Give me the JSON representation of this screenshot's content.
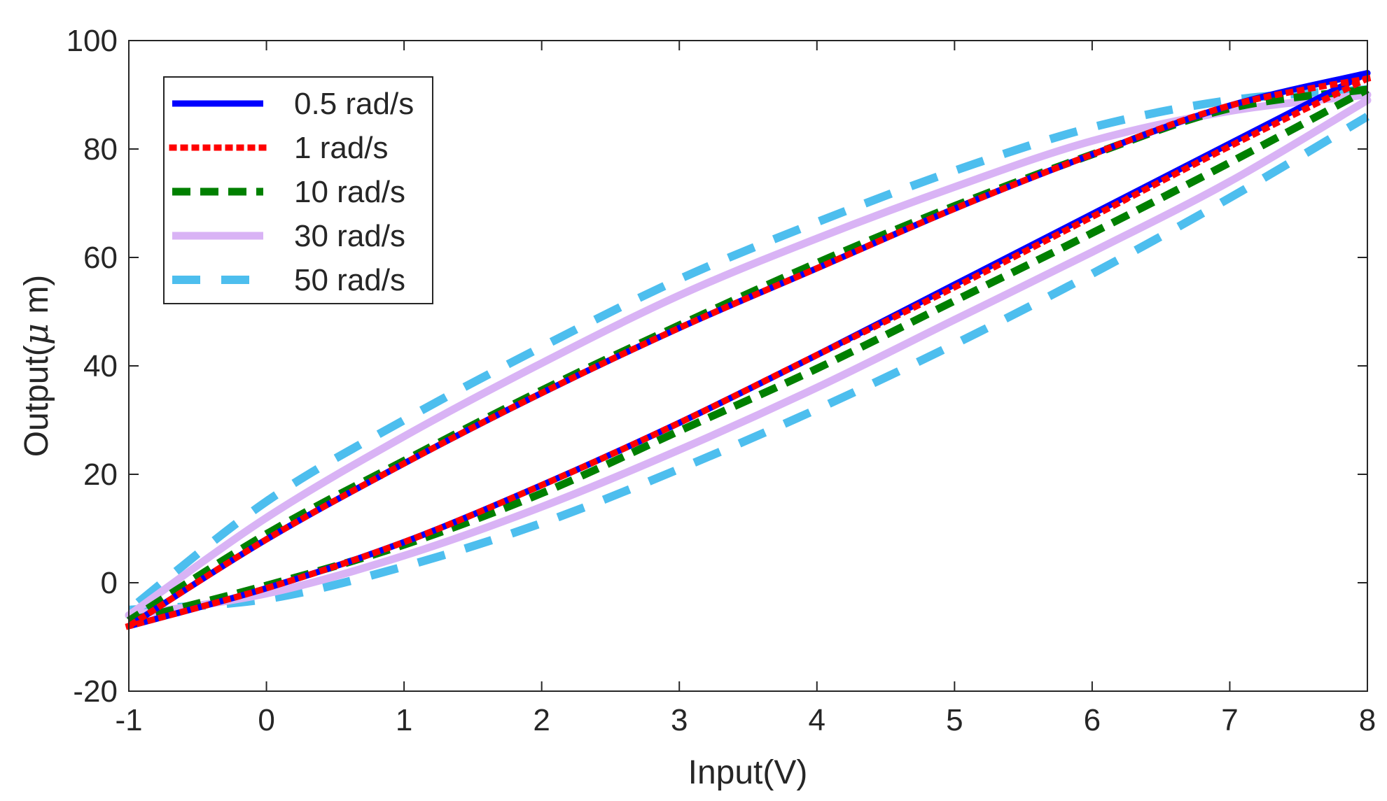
{
  "chart_data": {
    "type": "line",
    "title": "",
    "xlabel": "Input(V)",
    "ylabel_parts": [
      "Output(",
      "μ",
      " m)"
    ],
    "xlim": [
      -1,
      8
    ],
    "ylim": [
      -20,
      100
    ],
    "xticks": [
      -1,
      0,
      1,
      2,
      3,
      4,
      5,
      6,
      7,
      8
    ],
    "xtick_labels": [
      "-1",
      "0",
      "1",
      "2",
      "3",
      "4",
      "5",
      "6",
      "7",
      "8"
    ],
    "yticks": [
      -20,
      0,
      20,
      40,
      60,
      80,
      100
    ],
    "ytick_labels": [
      "-20",
      "0",
      "20",
      "40",
      "60",
      "80",
      "100"
    ],
    "grid": false,
    "legend_position": "top-left",
    "series": [
      {
        "name": "0.5 rad/s",
        "color": "#0000FF",
        "style": "solid",
        "ascending": [
          [
            -1,
            -8
          ],
          [
            0,
            -1
          ],
          [
            1,
            7.5
          ],
          [
            2,
            18
          ],
          [
            3,
            29.5
          ],
          [
            4,
            42
          ],
          [
            5,
            55
          ],
          [
            6,
            68
          ],
          [
            7,
            81
          ],
          [
            8,
            94
          ]
        ],
        "descending": [
          [
            8,
            94
          ],
          [
            7,
            88
          ],
          [
            6,
            79
          ],
          [
            5,
            69
          ],
          [
            4,
            58
          ],
          [
            3,
            47
          ],
          [
            2,
            35
          ],
          [
            1,
            22
          ],
          [
            0,
            8
          ],
          [
            -1,
            -8
          ]
        ]
      },
      {
        "name": "1 rad/s",
        "color": "#FF0000",
        "style": "dotted",
        "ascending": [
          [
            -1,
            -8
          ],
          [
            0,
            -1
          ],
          [
            1,
            7.5
          ],
          [
            2,
            18
          ],
          [
            3,
            29.5
          ],
          [
            4,
            42
          ],
          [
            5,
            54.5
          ],
          [
            6,
            67.5
          ],
          [
            7,
            80.5
          ],
          [
            8,
            93
          ]
        ],
        "descending": [
          [
            8,
            93
          ],
          [
            7,
            88
          ],
          [
            6,
            79
          ],
          [
            5,
            69
          ],
          [
            4,
            58
          ],
          [
            3,
            47
          ],
          [
            2,
            35
          ],
          [
            1,
            22
          ],
          [
            0,
            8
          ],
          [
            -1,
            -8
          ]
        ]
      },
      {
        "name": "10 rad/s",
        "color": "#008000",
        "style": "dashed",
        "ascending": [
          [
            -1,
            -7
          ],
          [
            0,
            -0.5
          ],
          [
            1,
            7
          ],
          [
            2,
            16.5
          ],
          [
            3,
            28
          ],
          [
            4,
            39.5
          ],
          [
            5,
            52
          ],
          [
            6,
            64.5
          ],
          [
            7,
            77.5
          ],
          [
            8,
            91
          ]
        ],
        "descending": [
          [
            8,
            91
          ],
          [
            7,
            87.5
          ],
          [
            6,
            79
          ],
          [
            5,
            69.5
          ],
          [
            4,
            59
          ],
          [
            3,
            47.5
          ],
          [
            2,
            35.5
          ],
          [
            1,
            22.5
          ],
          [
            0,
            9
          ],
          [
            -1,
            -7
          ]
        ]
      },
      {
        "name": "30 rad/s",
        "color": "#D9B3F5",
        "style": "solid",
        "ascending": [
          [
            -1,
            -6
          ],
          [
            0,
            -2
          ],
          [
            1,
            5
          ],
          [
            2,
            14
          ],
          [
            3,
            24.5
          ],
          [
            4,
            36
          ],
          [
            5,
            48.5
          ],
          [
            6,
            61
          ],
          [
            7,
            74
          ],
          [
            8,
            89
          ]
        ],
        "descending": [
          [
            8,
            90
          ],
          [
            7,
            87
          ],
          [
            6,
            81.5
          ],
          [
            5,
            73
          ],
          [
            4,
            63.5
          ],
          [
            3,
            53
          ],
          [
            2,
            40.5
          ],
          [
            1,
            27
          ],
          [
            0,
            12
          ],
          [
            -1,
            -6
          ]
        ]
      },
      {
        "name": "50 rad/s",
        "color": "#4DBEEE",
        "style": "longdash",
        "ascending": [
          [
            -1,
            -5
          ],
          [
            0,
            -3
          ],
          [
            1,
            3
          ],
          [
            2,
            11
          ],
          [
            3,
            21
          ],
          [
            4,
            32
          ],
          [
            5,
            44
          ],
          [
            6,
            57
          ],
          [
            7,
            71
          ],
          [
            8,
            86
          ]
        ],
        "descending": [
          [
            8,
            91
          ],
          [
            7,
            89
          ],
          [
            6,
            84
          ],
          [
            5,
            76
          ],
          [
            4,
            66.5
          ],
          [
            3,
            56
          ],
          [
            2,
            43.5
          ],
          [
            1,
            30
          ],
          [
            0,
            15
          ],
          [
            -1,
            -5
          ]
        ]
      }
    ]
  }
}
